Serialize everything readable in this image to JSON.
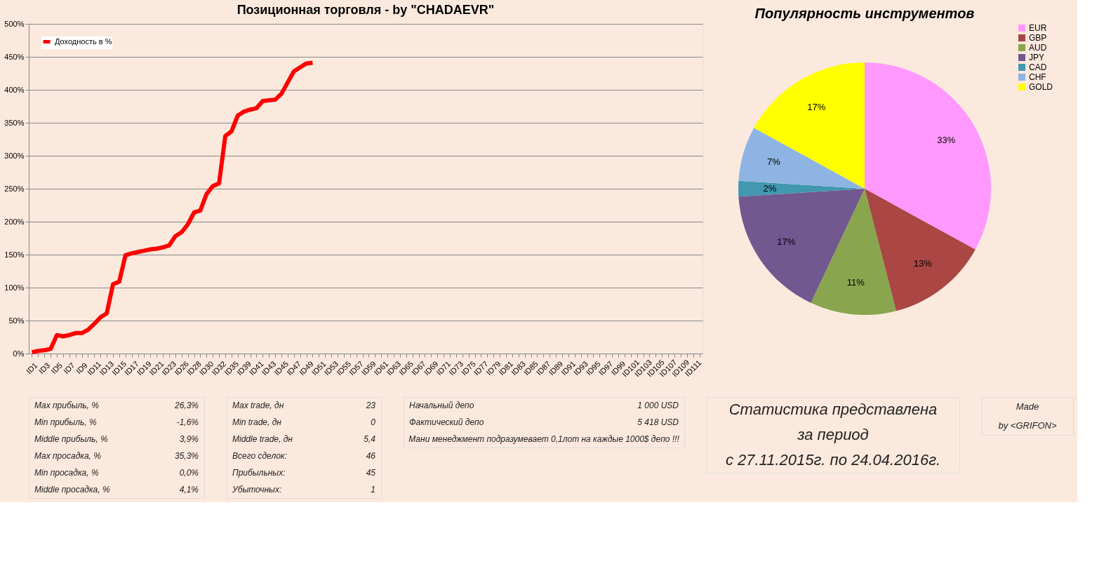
{
  "chart_data": [
    {
      "type": "line",
      "title": "Позиционная торговля - by \"CHADAEVR\"",
      "categories": [
        "ID1",
        null,
        "ID3",
        null,
        "ID5",
        null,
        "ID7",
        null,
        "ID9",
        null,
        "ID11",
        null,
        "ID13",
        null,
        "ID15",
        null,
        "ID17",
        null,
        "ID19",
        null,
        "ID21",
        null,
        "ID23",
        null,
        "ID26",
        null,
        "ID28",
        null,
        "ID30",
        null,
        "ID32",
        null,
        "ID35",
        null,
        "ID39",
        null,
        "ID41",
        null,
        "ID43",
        null,
        "ID45",
        null,
        "ID47",
        null,
        "ID49",
        null,
        "ID51",
        null,
        "ID53",
        null,
        "ID55",
        null,
        "ID57",
        null,
        "ID59",
        null,
        "ID61",
        null,
        "ID63",
        null,
        "ID65",
        null,
        "ID67",
        null,
        "ID69",
        null,
        "ID71",
        null,
        "ID73",
        null,
        "ID75",
        null,
        "ID77",
        null,
        "ID79",
        null,
        "ID81",
        null,
        "ID83",
        null,
        "ID85",
        null,
        "ID87",
        null,
        "ID89",
        null,
        "ID91",
        null,
        "ID93",
        null,
        "ID95",
        null,
        "ID97",
        null,
        "ID99",
        null,
        "ID101",
        null,
        "ID103",
        null,
        "ID105",
        null,
        "ID107",
        null,
        "ID109",
        null,
        "ID111",
        null
      ],
      "series": [
        {
          "name": "Доходность в %",
          "color": "#ff0000",
          "values": [
            2,
            4,
            5,
            7,
            28,
            26,
            28,
            31,
            31,
            36,
            45,
            55,
            61,
            105,
            109,
            149,
            152,
            154,
            156,
            158,
            159,
            161,
            164,
            178,
            184,
            196,
            214,
            217,
            242,
            254,
            258,
            330,
            337,
            361,
            367,
            370,
            372,
            383,
            384,
            385,
            394,
            411,
            428,
            434,
            440,
            441,
            null,
            null,
            null,
            null,
            null,
            null,
            null,
            null,
            null,
            null,
            null,
            null,
            null,
            null,
            null,
            null,
            null,
            null,
            null,
            null,
            null,
            null,
            null,
            null,
            null,
            null,
            null,
            null,
            null,
            null,
            null,
            null,
            null,
            null,
            null,
            null,
            null,
            null,
            null,
            null,
            null,
            null,
            null,
            null,
            null,
            null,
            null,
            null,
            null,
            null,
            null,
            null,
            null,
            null,
            null,
            null,
            null,
            null,
            null,
            null,
            null,
            null
          ]
        }
      ],
      "ylim": [
        0,
        500
      ],
      "yticks": [
        {
          "value": 0,
          "label": "0%"
        },
        {
          "value": 50,
          "label": "50%"
        },
        {
          "value": 100,
          "label": "100%"
        },
        {
          "value": 150,
          "label": "150%"
        },
        {
          "value": 200,
          "label": "200%"
        },
        {
          "value": 250,
          "label": "250%"
        },
        {
          "value": 300,
          "label": "300%"
        },
        {
          "value": 350,
          "label": "350%"
        },
        {
          "value": 400,
          "label": "400%"
        },
        {
          "value": 450,
          "label": "450%"
        },
        {
          "value": 500,
          "label": "500%"
        }
      ],
      "grid": "y",
      "legend": "top left",
      "marker": "none",
      "line_style": "solid"
    },
    {
      "type": "pie",
      "title": "Популярность инструментов",
      "categories": [
        "EUR",
        "GBP",
        "AUD",
        "JPY",
        "CAD",
        "CHF",
        "GOLD"
      ],
      "values": [
        33,
        13,
        11,
        17,
        2,
        7,
        17
      ],
      "colors": [
        "#ff99ff",
        "#aa4643",
        "#89a54e",
        "#71588f",
        "#4198af",
        "#8eb4e3",
        "#ffff00"
      ],
      "value_labels": [
        "33%",
        "13%",
        "11%",
        "17%",
        "2%",
        "7%",
        "17%"
      ],
      "legend": "right"
    },
    {
      "type": "other",
      "annotations": [
        "Max прибыль, %",
        "26,3%",
        "Min прибыль, %",
        "-1,6%",
        "Middle прибыль, %",
        "3,9%",
        "Max просадка, %",
        "35,3%",
        "Min просадка, %",
        "0,0%",
        "Middle просадка, %",
        "4,1%"
      ]
    },
    {
      "type": "other",
      "annotations": [
        "Max trade, дн",
        "23",
        "Min trade, дн",
        "0",
        "Middle trade, дн",
        "5,4",
        "Всего сделок:",
        "46",
        "Прибыльных:",
        "45",
        "Убыточных:",
        "1"
      ]
    },
    {
      "type": "other",
      "annotations": [
        "Начальный депо",
        "1 000 USD",
        "Фактический депо",
        "5 418 USD",
        "Мани менеджмент подразумевает 0,1лот на каждые 1000$ депо !!!"
      ]
    },
    {
      "type": "other",
      "annotations": [
        "Статистика представлена",
        "за период",
        "с 27.11.2015г. по 24.04.2016г."
      ]
    },
    {
      "type": "other",
      "annotations": [
        "Made",
        "by <GRIFON>"
      ]
    }
  ]
}
